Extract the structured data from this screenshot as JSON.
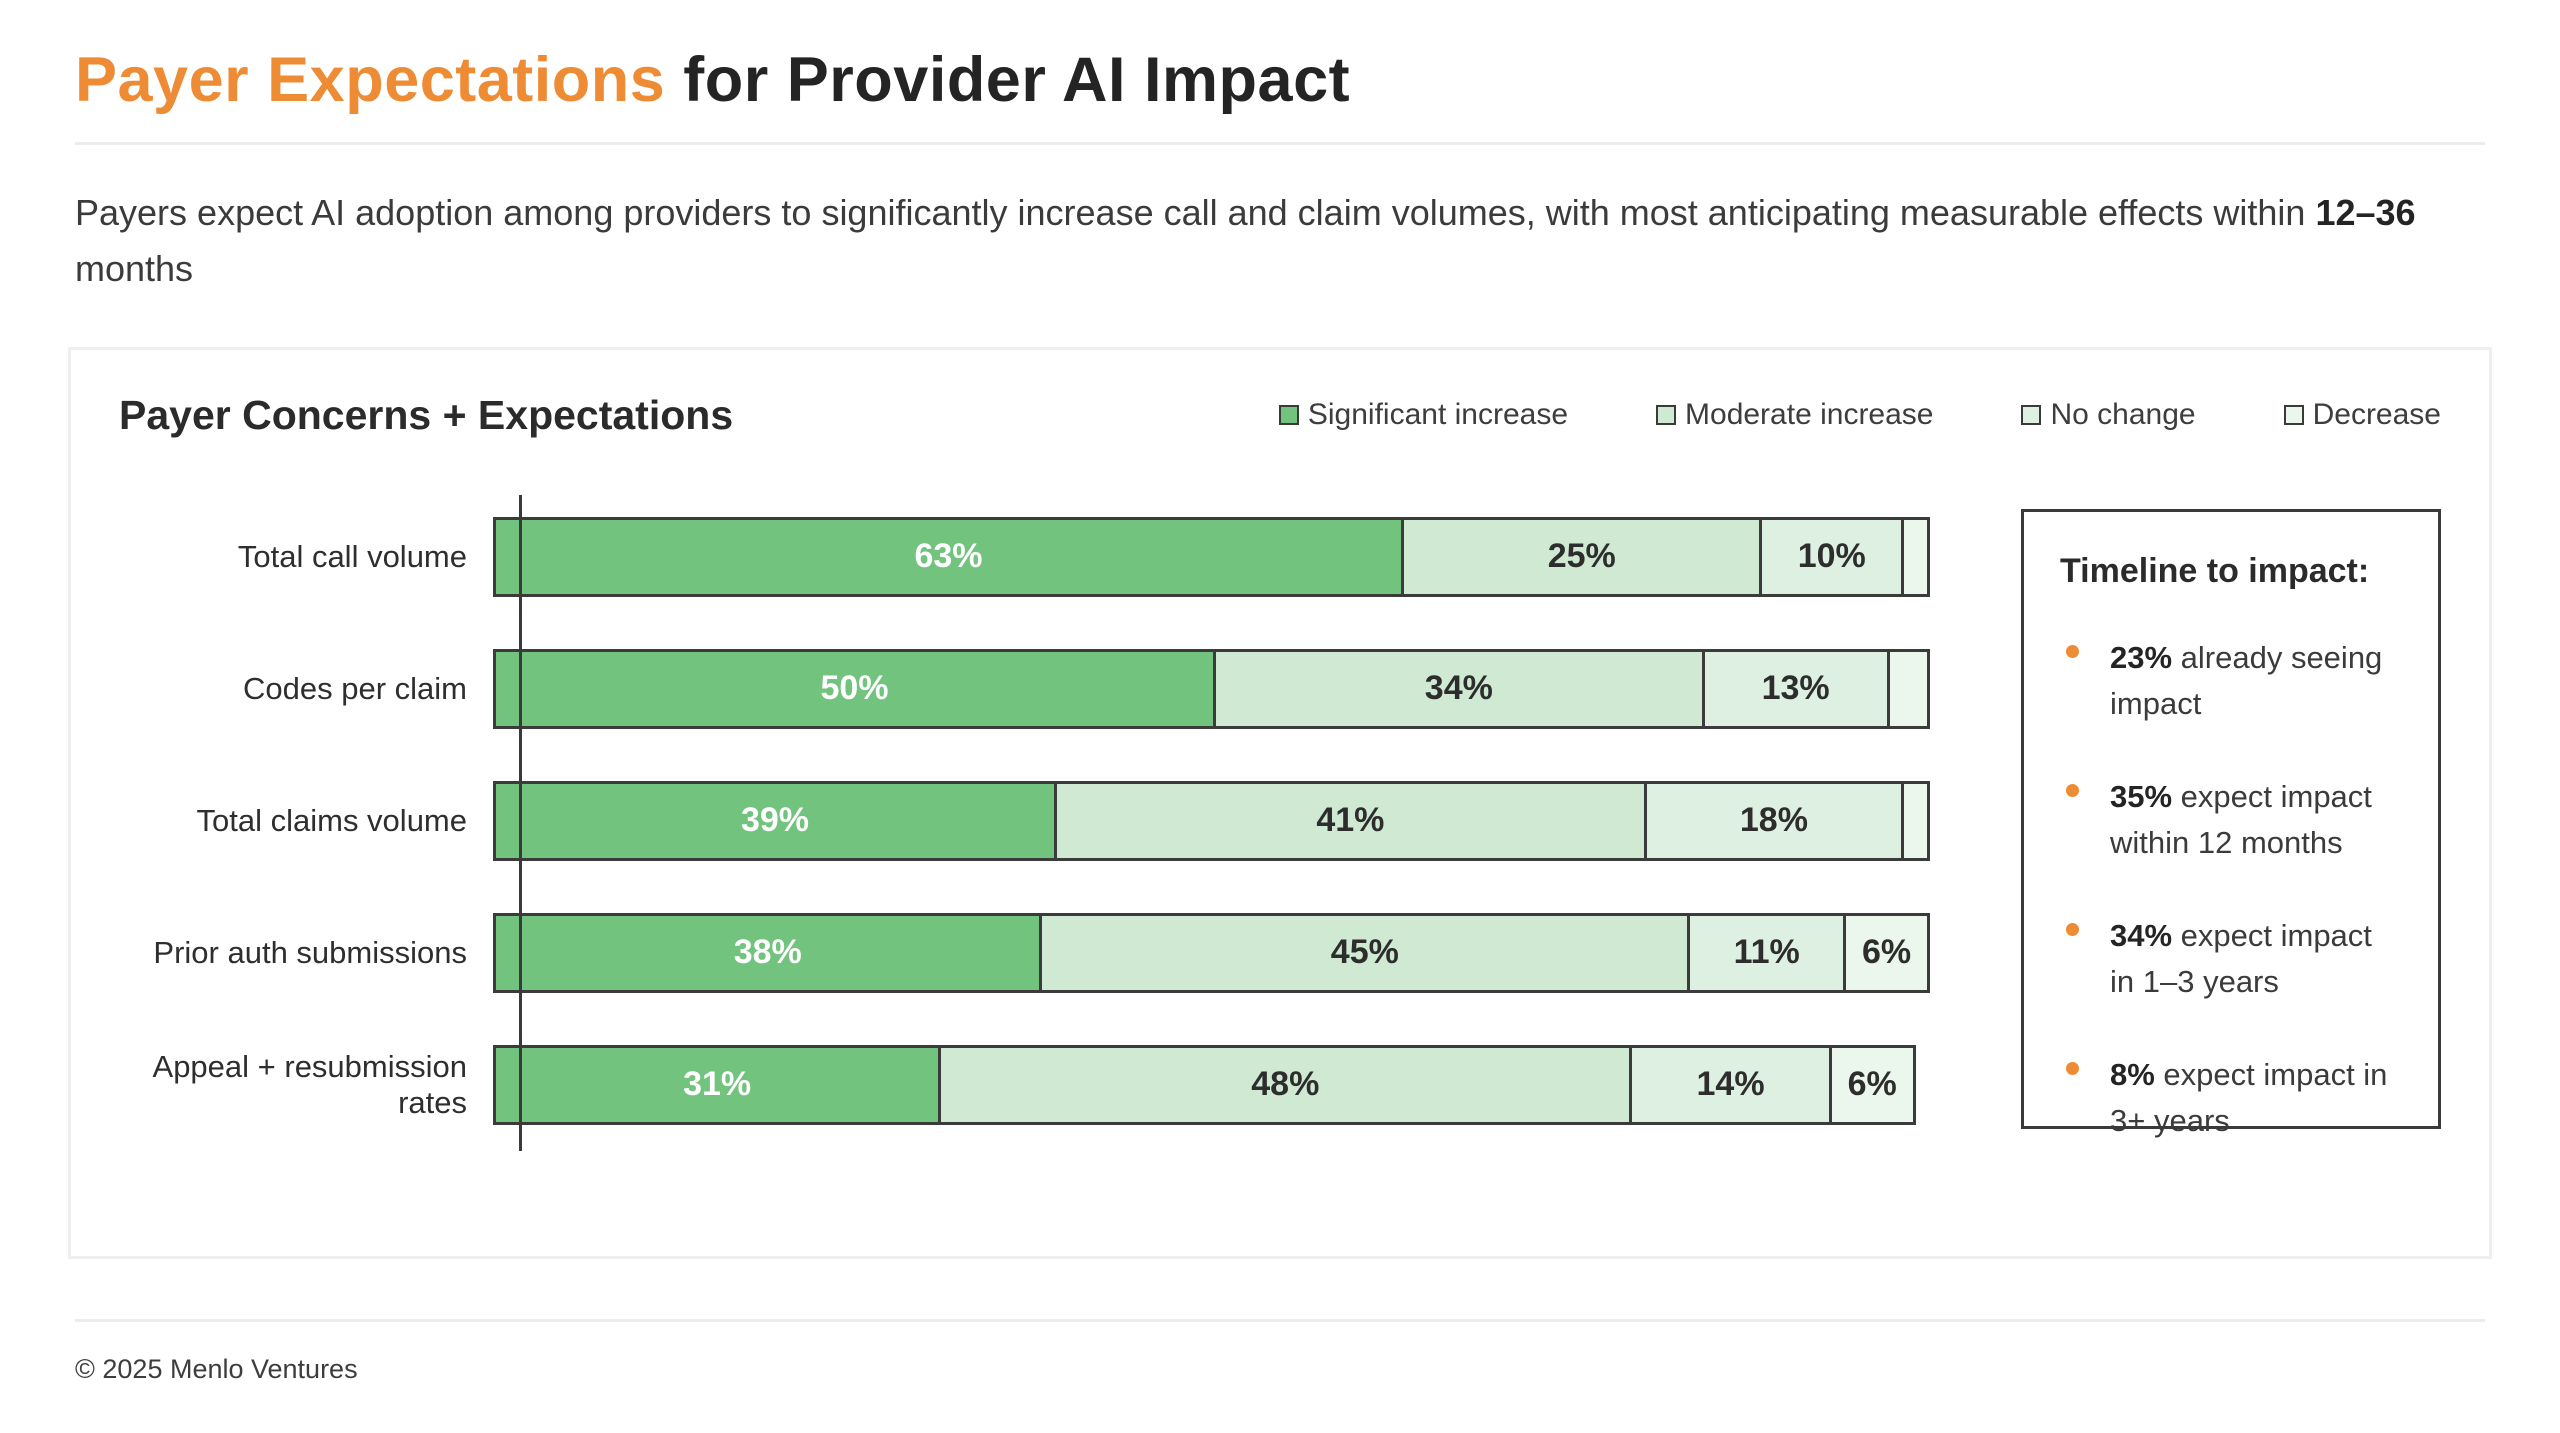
{
  "header": {
    "title_highlight": "Payer Expectations",
    "title_rest": " for Provider AI Impact",
    "subtitle_prefix": "Payers expect AI adoption among providers to significantly increase call and claim volumes, with most anticipating measurable effects within ",
    "subtitle_bold": "12–36",
    "subtitle_suffix": " months",
    "accent_color": "#ee8b35"
  },
  "chart_card": {
    "title": "Payer Concerns + Expectations"
  },
  "chart_data": {
    "type": "bar",
    "orientation": "horizontal",
    "stacked": true,
    "title": "Payer Concerns + Expectations",
    "xlim": [
      0,
      100
    ],
    "unit_suffix": "%",
    "grid": false,
    "legend_position": "top-right",
    "label_min_pct": 6,
    "categories": [
      "Total call volume",
      "Codes per claim",
      "Total claims volume",
      "Prior auth submissions",
      "Appeal + resubmission rates"
    ],
    "series": [
      {
        "name": "Significant increase",
        "color": "#72c37e",
        "text_color": "#ffffff",
        "values": [
          63,
          50,
          39,
          38,
          31
        ]
      },
      {
        "name": "Moderate increase",
        "color": "#cfe9d3",
        "text_color": "#2d2d2d",
        "values": [
          25,
          34,
          41,
          45,
          48
        ]
      },
      {
        "name": "No change",
        "color": "#def0e2",
        "text_color": "#2d2d2d",
        "values": [
          10,
          13,
          18,
          11,
          14
        ]
      },
      {
        "name": "Decrease",
        "color": "#ebf6ed",
        "text_color": "#2d2d2d",
        "values": [
          2,
          3,
          2,
          6,
          6
        ]
      }
    ]
  },
  "timeline": {
    "title": "Timeline to impact:",
    "bullet_color": "#ee8b35",
    "items": [
      {
        "stat": "23%",
        "text": " already seeing impact"
      },
      {
        "stat": "35%",
        "text": " expect impact within 12 months"
      },
      {
        "stat": "34%",
        "text": " expect impact in 1–3 years"
      },
      {
        "stat": "8%",
        "text": " expect impact in 3+ years"
      }
    ]
  },
  "footer": {
    "copyright": "© 2025 Menlo Ventures"
  }
}
